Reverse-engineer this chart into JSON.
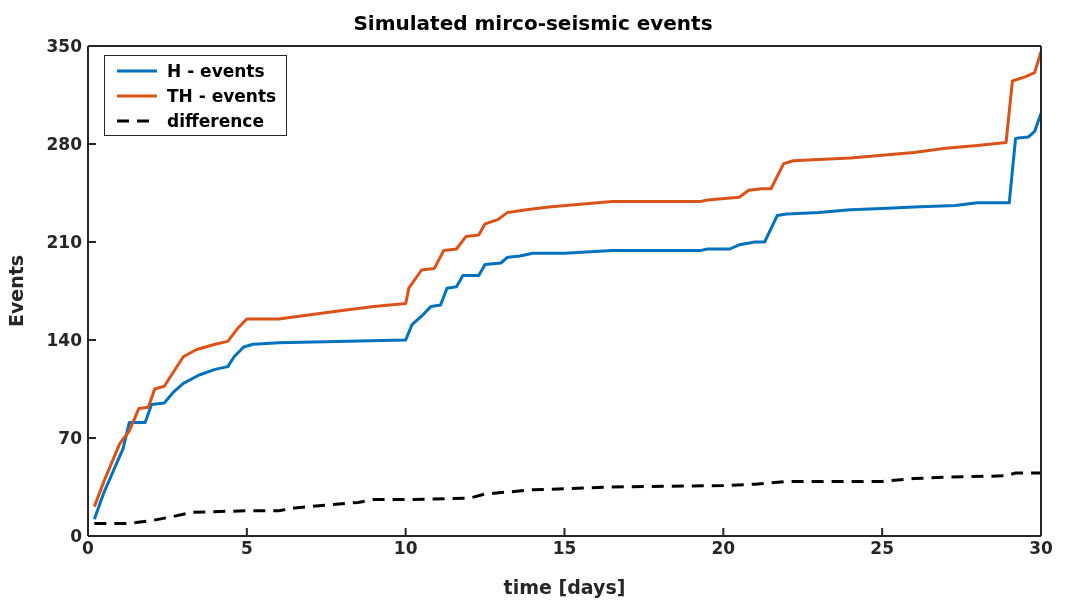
{
  "chart_data": {
    "type": "line",
    "title": "Simulated mirco-seismic events",
    "xlabel": "time [days]",
    "ylabel": "Events",
    "xlim": [
      0,
      30
    ],
    "xticks": [
      0,
      5,
      10,
      15,
      20,
      25,
      30
    ],
    "ylim": [
      0,
      350
    ],
    "yticks": [
      0,
      70,
      140,
      210,
      280,
      350
    ],
    "grid": false,
    "legend": "top left",
    "marker": "none",
    "series": [
      {
        "name": "H - events",
        "color": "#0072bd",
        "line_style": "solid",
        "x": [
          0.2,
          0.5,
          1.0,
          1.1,
          1.3,
          1.8,
          2.0,
          2.4,
          2.7,
          3.0,
          3.5,
          4.0,
          4.4,
          4.6,
          4.9,
          5.2,
          6,
          10,
          10.2,
          10.5,
          10.8,
          11.1,
          11.3,
          11.6,
          11.8,
          12.3,
          12.5,
          13,
          13.2,
          13.6,
          14,
          15,
          16.5,
          19.3,
          19.5,
          20.2,
          20.5,
          21,
          21.3,
          21.7,
          22,
          23,
          24,
          25,
          26,
          27.3,
          28,
          29,
          29.2,
          29.6,
          29.8,
          30
        ],
        "values": [
          12,
          31,
          57,
          62,
          81,
          81,
          94,
          95,
          103,
          109,
          115,
          119,
          121,
          128,
          135,
          137,
          138,
          140,
          151,
          157,
          164,
          165,
          177,
          178,
          186,
          186,
          194,
          195,
          199,
          200,
          202,
          202,
          204,
          204,
          205,
          205,
          208,
          210,
          210,
          229,
          230,
          231,
          233,
          234,
          235,
          236,
          238,
          238,
          284,
          285,
          289,
          302
        ]
      },
      {
        "name": "TH - events",
        "color": "#d95319",
        "line_style": "solid",
        "x": [
          0.2,
          0.5,
          1.0,
          1.3,
          1.6,
          1.9,
          2.1,
          2.4,
          3.0,
          3.4,
          4.0,
          4.4,
          4.7,
          5.0,
          6,
          7,
          8,
          9,
          10,
          10.1,
          10.5,
          10.9,
          11.2,
          11.6,
          11.9,
          12.3,
          12.5,
          12.9,
          13.2,
          13.8,
          14.5,
          15.5,
          16.5,
          19.3,
          19.5,
          20.5,
          20.8,
          21.2,
          21.5,
          21.9,
          22.2,
          23,
          24,
          25,
          26,
          27,
          28,
          28.9,
          29.1,
          29.5,
          29.8,
          30
        ],
        "values": [
          21,
          39,
          66,
          75,
          91,
          92,
          105,
          107,
          128,
          133,
          137,
          139,
          148,
          155,
          155,
          158,
          161,
          164,
          166,
          177,
          190,
          191,
          204,
          205,
          214,
          215,
          223,
          226,
          231,
          233,
          235,
          237,
          239,
          239,
          240,
          242,
          247,
          248,
          248,
          266,
          268,
          269,
          270,
          272,
          274,
          277,
          279,
          281,
          325,
          328,
          331,
          346
        ]
      },
      {
        "name": "difference",
        "color": "#000000",
        "line_style": "dashed",
        "x": [
          0.2,
          1.3,
          2,
          2.7,
          3.3,
          5,
          6,
          6.5,
          7.5,
          8.5,
          9,
          10,
          12,
          12.5,
          13,
          14,
          16.5,
          20,
          21,
          22,
          25,
          26,
          27,
          28.9,
          29.2,
          30
        ],
        "values": [
          9,
          9,
          11,
          14,
          17,
          18,
          18,
          20,
          22,
          24,
          26,
          26,
          27,
          30,
          31,
          33,
          35,
          36,
          37,
          39,
          39,
          41,
          42,
          43,
          45,
          45
        ]
      }
    ]
  }
}
